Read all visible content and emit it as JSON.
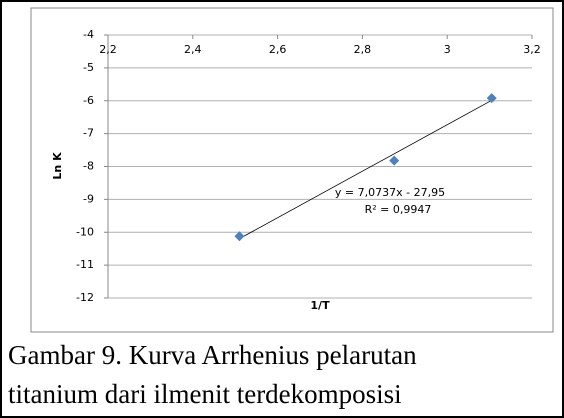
{
  "chart_data": {
    "type": "scatter",
    "x_label": "1/T",
    "y_label": "Ln K",
    "series": [
      {
        "name": null,
        "color": "#4f81bd",
        "x": [
          2.51,
          2.875,
          3.105
        ],
        "values": [
          -10.12,
          -7.82,
          -5.92
        ]
      }
    ],
    "xlim": [
      2.2,
      3.2
    ],
    "xticks": [
      {
        "value": 2.2,
        "label": "2,2"
      },
      {
        "value": 2.4,
        "label": "2,4"
      },
      {
        "value": 2.6,
        "label": "2,6"
      },
      {
        "value": 2.8,
        "label": "2,8"
      },
      {
        "value": 3,
        "label": "3"
      },
      {
        "value": 3.2,
        "label": "3,2"
      }
    ],
    "ylim": [
      -12,
      -4
    ],
    "yticks": [
      -4,
      -5,
      -6,
      -7,
      -8,
      -9,
      -10,
      -11,
      -12
    ],
    "grid": true,
    "trendline": {
      "slope": 7.0737,
      "intercept": -27.95,
      "equation": "y = 7,0737x - 27,95",
      "r2": "R² = 0,9947"
    }
  },
  "caption": [
    "Gambar  9. Kurva Arrhenius pelarutan",
    "titanium dari ilmenit terdekomposisi"
  ]
}
